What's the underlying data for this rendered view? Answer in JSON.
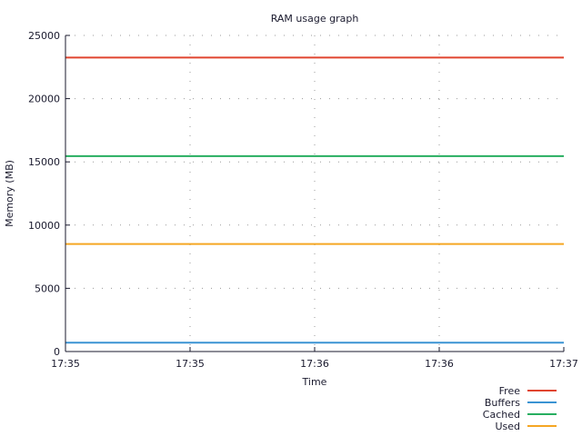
{
  "chart_data": {
    "type": "line",
    "title": "RAM usage graph",
    "xlabel": "Time",
    "ylabel": "Memory (MB)",
    "ylim": [
      0,
      25000
    ],
    "yticks": [
      0,
      5000,
      10000,
      15000,
      20000,
      25000
    ],
    "xticks": [
      "17:35",
      "17:35",
      "17:36",
      "17:36",
      "17:37"
    ],
    "x": [
      "17:35",
      "17:37"
    ],
    "grid": true,
    "legend_position": "bottom-right",
    "series": [
      {
        "name": "Free",
        "color": "#e0452f",
        "values": [
          23250,
          23250
        ]
      },
      {
        "name": "Buffers",
        "color": "#3a93d3",
        "values": [
          700,
          700
        ]
      },
      {
        "name": "Cached",
        "color": "#27ae60",
        "values": [
          15450,
          15450
        ]
      },
      {
        "name": "Used",
        "color": "#f5a623",
        "values": [
          8500,
          8500
        ]
      }
    ]
  }
}
